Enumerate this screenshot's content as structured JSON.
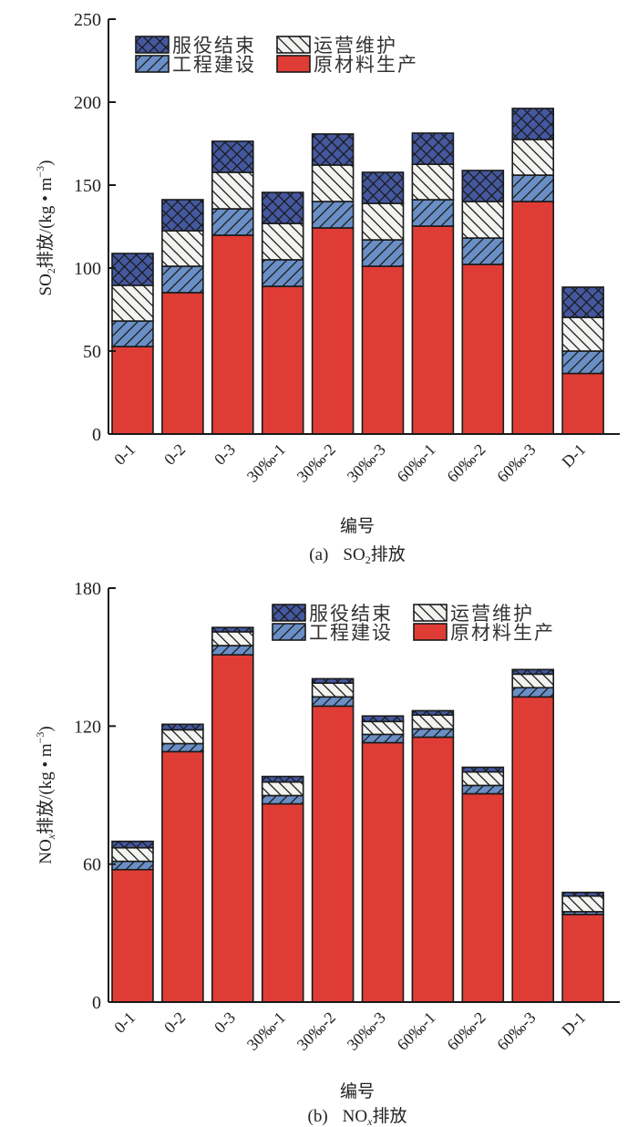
{
  "chart_data": [
    {
      "type": "bar",
      "stacked": true,
      "caption_prefix": "(a)",
      "caption_main": "SO",
      "caption_sub": "2",
      "caption_suffix": "排放",
      "xlabel": "编号",
      "ylabel_main": "SO",
      "ylabel_sub": "2",
      "ylabel_rest": "排放/(kg • m",
      "ylabel_sup": "−3",
      "ylabel_close": ")",
      "ylim": [
        0,
        250
      ],
      "yticks": [
        0,
        50,
        100,
        150,
        200,
        250
      ],
      "categories": [
        "0-1",
        "0-2",
        "0-3",
        "30‰-1",
        "30‰-2",
        "30‰-3",
        "60‰-1",
        "60‰-2",
        "60‰-3",
        "D-1"
      ],
      "legend_position": "top-left",
      "series": [
        {
          "name": "原材料生产",
          "key": "raw",
          "values": [
            52.7,
            85.2,
            119.8,
            89.0,
            124.2,
            101.1,
            125.3,
            102.2,
            140.1,
            36.5
          ]
        },
        {
          "name": "工程建设",
          "key": "construction",
          "values": [
            15.4,
            15.9,
            15.9,
            16.0,
            15.9,
            15.9,
            15.9,
            15.9,
            15.9,
            13.5
          ]
        },
        {
          "name": "运营维护",
          "key": "operation",
          "values": [
            21.5,
            21.4,
            22.0,
            21.9,
            22.0,
            22.0,
            21.4,
            22.0,
            21.5,
            20.3
          ]
        },
        {
          "name": "服役结束",
          "key": "endoflife",
          "values": [
            19.2,
            18.7,
            18.7,
            18.7,
            18.7,
            18.7,
            18.7,
            18.7,
            18.7,
            18.2
          ]
        }
      ]
    },
    {
      "type": "bar",
      "stacked": true,
      "caption_prefix": "(b)",
      "caption_main": "NO",
      "caption_sub": "x",
      "caption_suffix": "排放",
      "xlabel": "编号",
      "ylabel_main": "NO",
      "ylabel_sub": "x",
      "ylabel_rest": "排放/(kg • m",
      "ylabel_sup": "−3",
      "ylabel_close": ")",
      "ylim": [
        0,
        180
      ],
      "yticks": [
        0,
        60,
        120,
        180
      ],
      "categories": [
        "0-1",
        "0-2",
        "0-3",
        "30‰-1",
        "30‰-2",
        "30‰-3",
        "60‰-1",
        "60‰-2",
        "60‰-3",
        "D-1"
      ],
      "legend_position": "top-right",
      "series": [
        {
          "name": "原材料生产",
          "key": "raw",
          "values": [
            57.6,
            108.9,
            151.0,
            86.2,
            128.7,
            112.8,
            115.2,
            90.6,
            132.7,
            38.1
          ]
        },
        {
          "name": "工程建设",
          "key": "construction",
          "values": [
            3.6,
            3.5,
            4.0,
            3.6,
            4.0,
            3.6,
            3.6,
            3.6,
            4.0,
            1.2
          ]
        },
        {
          "name": "运营维护",
          "key": "operation",
          "values": [
            5.9,
            6.0,
            6.0,
            5.9,
            6.0,
            5.6,
            6.0,
            5.9,
            5.9,
            6.8
          ]
        },
        {
          "name": "服役结束",
          "key": "endoflife",
          "values": [
            2.8,
            2.4,
            1.9,
            2.4,
            1.9,
            2.4,
            1.9,
            2.0,
            2.0,
            1.6
          ]
        }
      ]
    }
  ],
  "legend": [
    {
      "key": "endoflife",
      "label": "服役结束"
    },
    {
      "key": "operation",
      "label": "运营维护"
    },
    {
      "key": "construction",
      "label": "工程建设"
    },
    {
      "key": "raw",
      "label": "原材料生产"
    }
  ],
  "colors": {
    "raw": "#e03c36",
    "construction": "#6a8fc6",
    "operation": "#f3f3f1",
    "endoflife": "#4458a0",
    "stroke": "#1a1a1a"
  }
}
